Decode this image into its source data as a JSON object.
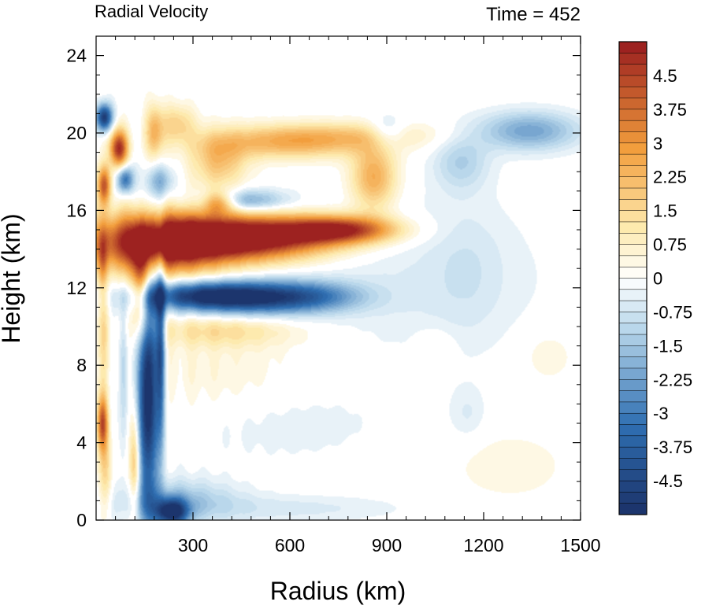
{
  "chart_data": {
    "type": "heatmap",
    "title": "Radial Velocity",
    "annotation": "Time = 452",
    "xlabel": "Radius (km)",
    "ylabel": "Height (km)",
    "xlim": [
      0,
      1500
    ],
    "ylim": [
      0,
      25
    ],
    "xticks": [
      300,
      600,
      900,
      1200,
      1500
    ],
    "xtick_labels": [
      "300",
      "600",
      "900",
      "1200",
      "1500"
    ],
    "yticks": [
      0,
      4,
      8,
      12,
      16,
      20,
      24
    ],
    "ytick_labels": [
      "0",
      "4",
      "8",
      "12",
      "16",
      "20",
      "24"
    ],
    "colorbar": {
      "min": -5.25,
      "max": 5.25,
      "step": 0.25,
      "tick_values": [
        4.5,
        3.75,
        3,
        2.25,
        1.5,
        0.75,
        0,
        -0.75,
        -1.5,
        -2.25,
        -3,
        -3.75,
        -4.5
      ],
      "tick_labels": [
        "4.5",
        "3.75",
        "3",
        "2.25",
        "1.5",
        "0.75",
        "0",
        "-0.75",
        "-1.5",
        "-2.25",
        "-3",
        "-3.75",
        "-4.5"
      ],
      "colors": {
        "strong_negative": "#1b3168",
        "negative": "#2f6fb2",
        "weak_negative": "#b7d6ea",
        "neutral": "#ffffff",
        "weak_positive": "#fde9ac",
        "positive": "#f29d3c",
        "strong_positive": "#981b1e"
      }
    },
    "features": [
      {
        "r": 190,
        "z": 14.3,
        "sr": 150,
        "sz": 1.1,
        "v": 6.0
      },
      {
        "r": 480,
        "z": 14.6,
        "sr": 180,
        "sz": 0.8,
        "v": 6.0
      },
      {
        "r": 760,
        "z": 15.0,
        "sr": 120,
        "sz": 0.5,
        "v": 4.5
      },
      {
        "r": 140,
        "z": 12.0,
        "sr": 20,
        "sz": 1.8,
        "v": 4.0
      },
      {
        "r": 500,
        "z": 11.5,
        "sr": 170,
        "sz": 0.6,
        "v": -5.0
      },
      {
        "r": 300,
        "z": 11.6,
        "sr": 120,
        "sz": 0.5,
        "v": -3.0
      },
      {
        "r": 160,
        "z": 7.0,
        "sr": 22,
        "sz": 4.5,
        "v": -6.0
      },
      {
        "r": 200,
        "z": 9.0,
        "sr": 10,
        "sz": 3.5,
        "v": -3.5
      },
      {
        "r": 235,
        "z": 0.4,
        "sr": 35,
        "sz": 0.5,
        "v": -5.0
      },
      {
        "r": 250,
        "z": 1.0,
        "sr": 130,
        "sz": 0.8,
        "v": -1.5
      },
      {
        "r": 600,
        "z": 0.6,
        "sr": 250,
        "sz": 0.5,
        "v": -0.6
      },
      {
        "r": 390,
        "z": 9.8,
        "sr": 160,
        "sz": 0.6,
        "v": 1.3
      },
      {
        "r": 380,
        "z": 7.0,
        "sr": 200,
        "sz": 2.2,
        "v": 0.6
      },
      {
        "r": 500,
        "z": 5.0,
        "sr": 250,
        "sz": 1.5,
        "v": -0.6
      },
      {
        "r": 860,
        "z": 17.7,
        "sr": 50,
        "sz": 1.2,
        "v": 2.6
      },
      {
        "r": 1280,
        "z": 2.8,
        "sr": 120,
        "sz": 1.2,
        "v": 0.5
      },
      {
        "r": 600,
        "z": 19.5,
        "sr": 180,
        "sz": 0.6,
        "v": 2.3
      },
      {
        "r": 800,
        "z": 19.9,
        "sr": 200,
        "sz": 0.5,
        "v": 1.0
      },
      {
        "r": 380,
        "z": 18.5,
        "sr": 60,
        "sz": 1.0,
        "v": 2.0
      },
      {
        "r": 460,
        "z": 16.5,
        "sr": 90,
        "sz": 0.4,
        "v": -2.3
      },
      {
        "r": 380,
        "z": 16.4,
        "sr": 35,
        "sz": 0.4,
        "v": 3.0
      },
      {
        "r": 1340,
        "z": 20.1,
        "sr": 110,
        "sz": 0.7,
        "v": -2.2
      },
      {
        "r": 1130,
        "z": 18.5,
        "sr": 60,
        "sz": 1.0,
        "v": -1.2
      },
      {
        "r": 900,
        "z": 20.0,
        "sr": 40,
        "sz": 0.6,
        "v": -1.4
      },
      {
        "r": 1000,
        "z": 12.5,
        "sr": 300,
        "sz": 3.0,
        "v": -0.5
      },
      {
        "r": 1050,
        "z": 9.0,
        "sr": 40,
        "sz": 0.6,
        "v": 0.5
      },
      {
        "r": 1400,
        "z": 8.5,
        "sr": 60,
        "sz": 1.0,
        "v": 0.5
      },
      {
        "r": 1150,
        "z": 5.5,
        "sr": 40,
        "sz": 1.0,
        "v": -0.5
      },
      {
        "r": 1150,
        "z": 13.0,
        "sr": 80,
        "sz": 2.5,
        "v": -0.4
      },
      {
        "r": 25,
        "z": 20.8,
        "sr": 18,
        "sz": 0.5,
        "v": -5.0
      },
      {
        "r": 70,
        "z": 19.2,
        "sr": 20,
        "sz": 0.7,
        "v": 5.0
      },
      {
        "r": 90,
        "z": 17.6,
        "sr": 18,
        "sz": 0.5,
        "v": -3.5
      },
      {
        "r": 25,
        "z": 17.3,
        "sr": 15,
        "sz": 0.7,
        "v": 4.0
      },
      {
        "r": 20,
        "z": 5.0,
        "sr": 12,
        "sz": 1.0,
        "v": 4.0
      },
      {
        "r": 30,
        "z": 2.5,
        "sr": 15,
        "sz": 1.5,
        "v": 1.5
      },
      {
        "r": 25,
        "z": 9.5,
        "sr": 12,
        "sz": 2.0,
        "v": 1.2
      },
      {
        "r": 20,
        "z": 13.5,
        "sr": 10,
        "sz": 1.0,
        "v": 1.5
      },
      {
        "r": 180,
        "z": 20.0,
        "sr": 20,
        "sz": 1.0,
        "v": 2.2
      },
      {
        "r": 250,
        "z": 20.5,
        "sr": 40,
        "sz": 0.7,
        "v": 1.6
      },
      {
        "r": 200,
        "z": 17.5,
        "sr": 30,
        "sz": 0.6,
        "v": -1.8
      },
      {
        "r": 120,
        "z": 3.0,
        "sr": 12,
        "sz": 2.0,
        "v": 2.5
      },
      {
        "r": 85,
        "z": 8.0,
        "sr": 10,
        "sz": 3.0,
        "v": -1.5
      },
      {
        "r": 700,
        "z": 11.6,
        "sr": 90,
        "sz": 0.5,
        "v": -0.8
      }
    ]
  }
}
